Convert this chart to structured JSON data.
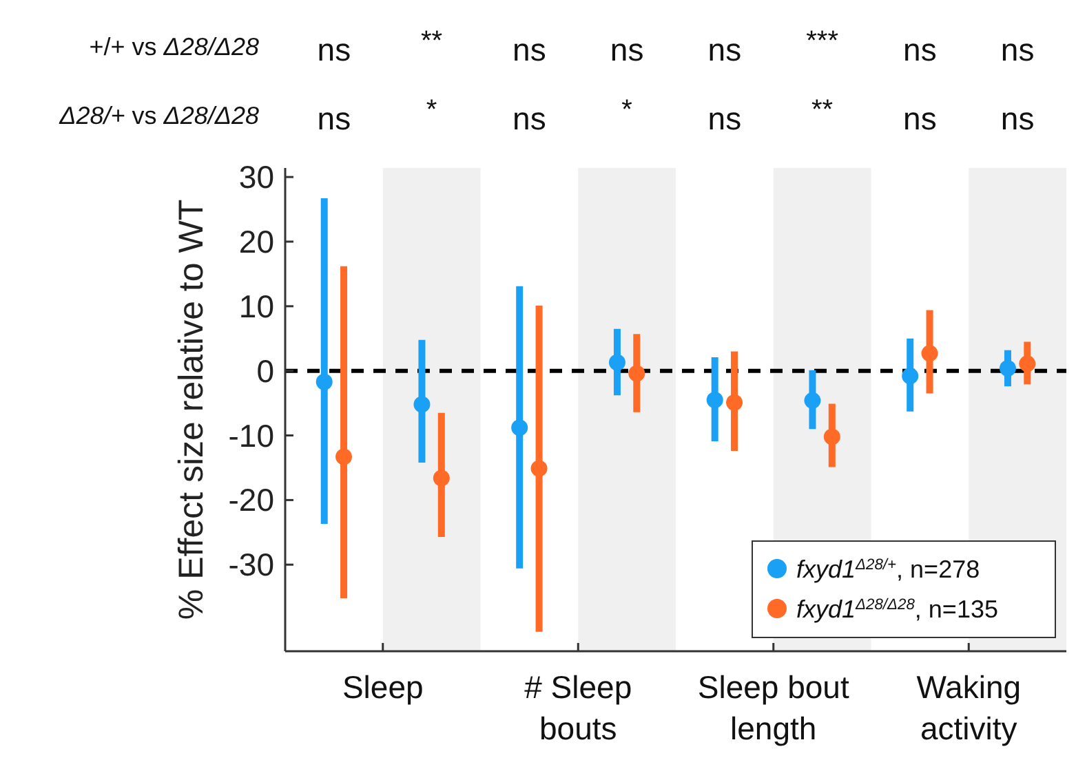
{
  "chart_data": {
    "type": "scatter",
    "ylabel": "% Effect size relative to WT",
    "categories": [
      "Sleep",
      "# Sleep bouts",
      "Sleep bout length",
      "Waking activity"
    ],
    "ylim": [
      -43.4,
      31.4
    ],
    "yticks": [
      -30,
      -20,
      -10,
      0,
      10,
      20,
      30
    ],
    "grid": false,
    "legend": "bottom right",
    "marker": "circle",
    "series": [
      {
        "name": "fxyd1$^{Δ28/+}$, n=278",
        "color": "#1aa0f5",
        "values": [
          -1.7,
          -8.8,
          -4.5,
          -0.8
        ],
        "errors": [
          [
            -23.7,
            26.7
          ],
          [
            -30.6,
            13.1
          ],
          [
            -10.9,
            2.1
          ],
          [
            -6.3,
            5.0
          ]
        ]
      },
      {
        "name": "fxyd1$^{Δ28/Δ28}$, n=135",
        "color": "#ff6a26",
        "values": [
          -13.3,
          -15.1,
          -4.9,
          2.7
        ],
        "errors": [
          [
            -35.2,
            16.2
          ],
          [
            -40.4,
            10.1
          ],
          [
            -12.4,
            3.0
          ],
          [
            -3.5,
            9.4
          ]
        ]
      },
      {
        "color": "#1aa0f5",
        "values": [
          -5.2,
          1.3,
          -4.6,
          0.4
        ],
        "errors": [
          [
            -14.2,
            4.8
          ],
          [
            -3.8,
            6.5
          ],
          [
            -9.0,
            0.1
          ],
          [
            -2.4,
            3.2
          ]
        ]
      },
      {
        "color": "#ff6a26",
        "values": [
          -16.6,
          -0.4,
          -10.2,
          1.1
        ],
        "errors": [
          [
            -25.7,
            -6.5
          ],
          [
            -6.4,
            5.7
          ],
          [
            -14.9,
            -5.1
          ],
          [
            -2.1,
            4.5
          ]
        ]
      }
    ],
    "bands": [
      {
        "axis": "x",
        "from": "Sleep",
        "to": "Sleep",
        "color": "#f0f0f0"
      },
      {
        "axis": "x",
        "from": "# Sleep bouts",
        "to": "# Sleep bouts",
        "color": "#f0f0f0"
      },
      {
        "axis": "x",
        "from": "Sleep bout length",
        "to": "Sleep bout length",
        "color": "#f0f0f0"
      },
      {
        "axis": "x",
        "from": "Waking activity",
        "to": "Waking activity",
        "color": "#f0f0f0"
      }
    ],
    "ref_lines": [
      {
        "axis": "y",
        "value": 0,
        "color": "#000000",
        "line_style": "dashed"
      }
    ],
    "annotations": [
      "+/+ vs Δ28/Δ28",
      "ns",
      "**",
      "ns",
      "ns",
      "ns",
      "***",
      "ns",
      "ns",
      "Δ28/+ vs Δ28/Δ28",
      "ns",
      "*",
      "ns",
      "*",
      "ns",
      "**",
      "ns",
      "ns"
    ]
  }
}
